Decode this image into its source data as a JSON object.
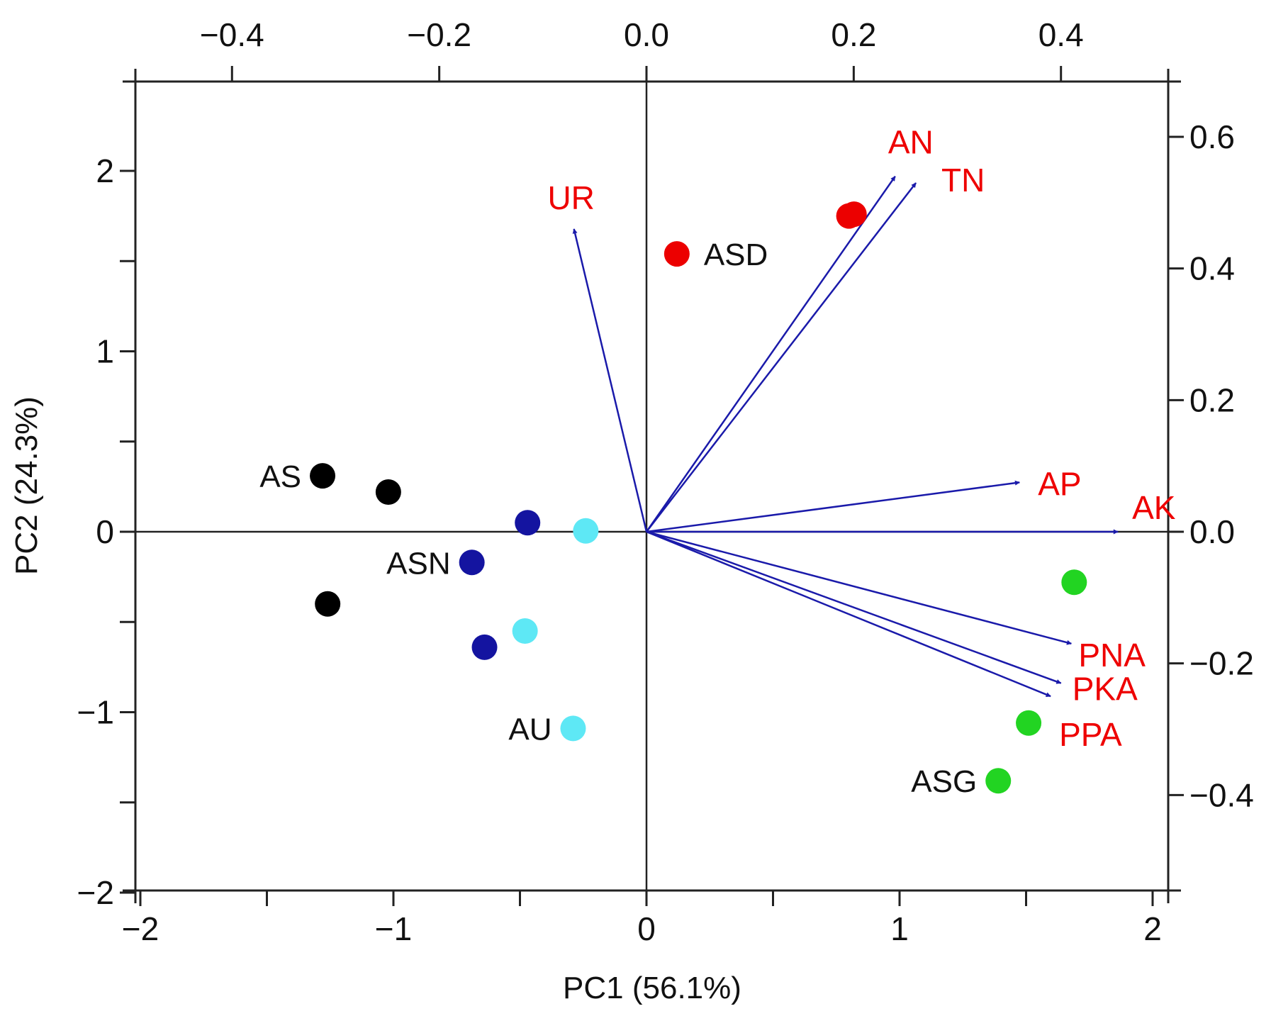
{
  "chart_data": {
    "type": "scatter",
    "subtype": "pca-biplot",
    "xlabel": "PC1 (56.1%)",
    "ylabel": "PC2 (24.3%)",
    "xlim": [
      -2,
      2
    ],
    "ylim": [
      -2,
      2.5
    ],
    "loading_xlim": [
      -0.5035,
      0.5035
    ],
    "loading_ylim": [
      -0.5472,
      0.684
    ],
    "axes": {
      "bottom": {
        "ticks": [
          -2,
          -1,
          0,
          1,
          2
        ],
        "labels": [
          "−2",
          "−1",
          "0",
          "1",
          "2"
        ],
        "minor": [
          -1.5,
          -0.5,
          0.5,
          1.5
        ]
      },
      "left": {
        "ticks": [
          -2,
          -1,
          0,
          1,
          2
        ],
        "labels": [
          "−2",
          "−1",
          "0",
          "1",
          "2"
        ],
        "minor": [
          -1.5,
          -0.5,
          0.5,
          1.5
        ]
      },
      "top": {
        "ticks": [
          -0.4,
          -0.2,
          0.0,
          0.2,
          0.4
        ],
        "labels": [
          "−0.4",
          "−0.2",
          "0.0",
          "0.2",
          "0.4"
        ]
      },
      "right": {
        "ticks": [
          -0.4,
          -0.2,
          0.0,
          0.2,
          0.4,
          0.6
        ],
        "labels": [
          "−0.4",
          "−0.2",
          "0.0",
          "0.2",
          "0.4",
          "0.6"
        ]
      }
    },
    "groups": [
      {
        "name": "AS",
        "color": "#000000",
        "label_side": "left",
        "label_point": 0,
        "points": [
          [
            -1.28,
            0.31
          ],
          [
            -1.02,
            0.22
          ],
          [
            -1.26,
            -0.4
          ]
        ]
      },
      {
        "name": "ASN",
        "color": "#1414a0",
        "label_side": "left",
        "label_point": 1,
        "points": [
          [
            -0.47,
            0.05
          ],
          [
            -0.69,
            -0.17
          ],
          [
            -0.64,
            -0.64
          ]
        ]
      },
      {
        "name": "AU",
        "color": "#5ee8f5",
        "label_side": "left",
        "label_point": 2,
        "points": [
          [
            -0.24,
            0.005
          ],
          [
            -0.48,
            -0.55
          ],
          [
            -0.29,
            -1.09
          ]
        ]
      },
      {
        "name": "ASD",
        "color": "#ec0000",
        "label_side": "right",
        "label_point": 0,
        "points": [
          [
            0.12,
            1.54
          ],
          [
            0.8,
            1.75
          ],
          [
            0.82,
            1.76
          ]
        ]
      },
      {
        "name": "ASG",
        "color": "#22d422",
        "label_side": "left",
        "label_point": 2,
        "points": [
          [
            1.69,
            -0.28
          ],
          [
            1.51,
            -1.06
          ],
          [
            1.39,
            -1.38
          ]
        ]
      }
    ],
    "loadings": [
      {
        "name": "UR",
        "x": -0.07,
        "y": 0.46
      },
      {
        "name": "AN",
        "x": 0.24,
        "y": 0.54
      },
      {
        "name": "TN",
        "x": 0.26,
        "y": 0.53
      },
      {
        "name": "AP",
        "x": 0.36,
        "y": 0.075
      },
      {
        "name": "AK",
        "x": 0.455,
        "y": 0.0
      },
      {
        "name": "PNA",
        "x": 0.41,
        "y": -0.17
      },
      {
        "name": "PKA",
        "x": 0.4,
        "y": -0.23
      },
      {
        "name": "PPA",
        "x": 0.39,
        "y": -0.25
      }
    ],
    "colors": {
      "arrow": "#1a1aaa",
      "variable_label": "#ee0000",
      "axis": "#222222"
    }
  }
}
